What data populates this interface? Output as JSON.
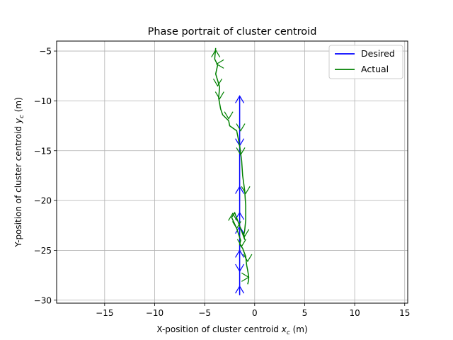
{
  "chart_data": {
    "type": "line",
    "title": "Phase portrait of cluster centroid",
    "xlabel": "X-position of cluster centroid x_c (m)",
    "xlabel_main": "X-position of cluster centroid ",
    "xlabel_var": "x",
    "xlabel_sub": "c",
    "xlabel_unit": " (m)",
    "ylabel": "Y-position of cluster centroid y_c (m)",
    "ylabel_main": "Y-position of cluster centroid ",
    "ylabel_var": "y",
    "ylabel_sub": "c",
    "ylabel_unit": " (m)",
    "xlim": [
      -19.8,
      15.3
    ],
    "ylim": [
      -30.3,
      -4.0
    ],
    "xticks": [
      -15,
      -10,
      -5,
      0,
      5,
      10,
      15
    ],
    "yticks": [
      -5,
      -10,
      -15,
      -20,
      -25,
      -30
    ],
    "xtick_labels": [
      "−15",
      "−10",
      "−5",
      "0",
      "5",
      "10",
      "15"
    ],
    "ytick_labels": [
      "−5",
      "−10",
      "−15",
      "−20",
      "−25",
      "−30"
    ],
    "grid": true,
    "legend_position": "top-right",
    "series": [
      {
        "name": "Desired",
        "color": "#0000ff",
        "x": [
          -1.5,
          -1.5,
          -1.5,
          -1.5,
          -1.5,
          -1.5,
          -1.5,
          -1.5,
          -1.5
        ],
        "y": [
          -9.5,
          -13.0,
          -16.5,
          -19.0,
          -21.5,
          -23.5,
          -26.0,
          -28.0,
          -29.5
        ],
        "arrows": [
          {
            "x": -1.5,
            "y": -9.5,
            "dir": "up"
          },
          {
            "x": -1.5,
            "y": -14.5,
            "dir": "down"
          },
          {
            "x": -1.5,
            "y": -18.6,
            "dir": "up"
          },
          {
            "x": -1.5,
            "y": -21.2,
            "dir": "up"
          },
          {
            "x": -1.5,
            "y": -22.6,
            "dir": "up"
          },
          {
            "x": -1.5,
            "y": -25.0,
            "dir": "up"
          },
          {
            "x": -1.5,
            "y": -27.1,
            "dir": "down"
          },
          {
            "x": -1.5,
            "y": -28.6,
            "dir": "up"
          }
        ]
      },
      {
        "name": "Actual",
        "color": "#008000",
        "x": [
          -3.9,
          -4.0,
          -3.7,
          -3.9,
          -3.5,
          -3.6,
          -3.4,
          -3.2,
          -2.6,
          -2.5,
          -1.8,
          -1.5,
          -1.3,
          -1.2,
          -1.0,
          -0.9,
          -0.9,
          -1.0,
          -1.1,
          -1.0,
          -2.0,
          -2.3,
          -1.8,
          -1.4,
          -1.5,
          -1.2,
          -0.9,
          -0.8,
          -0.7,
          -0.6,
          -0.6,
          -0.7
        ],
        "y": [
          -4.7,
          -5.8,
          -6.4,
          -7.3,
          -8.6,
          -9.7,
          -10.8,
          -11.4,
          -12.0,
          -12.5,
          -13.0,
          -14.5,
          -16.0,
          -17.5,
          -19.0,
          -20.5,
          -22.0,
          -23.0,
          -23.5,
          -23.9,
          -21.2,
          -21.7,
          -22.8,
          -24.0,
          -24.4,
          -24.8,
          -25.6,
          -26.5,
          -27.0,
          -27.6,
          -28.0,
          -28.4
        ],
        "arrows": [
          {
            "x": -3.9,
            "y": -4.9,
            "dir": "up"
          },
          {
            "x": -3.8,
            "y": -6.3,
            "dir": "left"
          },
          {
            "x": -3.7,
            "y": -8.5,
            "dir": "down"
          },
          {
            "x": -3.5,
            "y": -9.8,
            "dir": "down"
          },
          {
            "x": -2.6,
            "y": -11.8,
            "dir": "down"
          },
          {
            "x": -1.4,
            "y": -13.0,
            "dir": "down"
          },
          {
            "x": -1.4,
            "y": -15.4,
            "dir": "down"
          },
          {
            "x": -0.9,
            "y": -19.3,
            "dir": "down"
          },
          {
            "x": -2.2,
            "y": -21.3,
            "dir": "up"
          },
          {
            "x": -1.8,
            "y": -22.8,
            "dir": "down"
          },
          {
            "x": -1.0,
            "y": -23.6,
            "dir": "down"
          },
          {
            "x": -1.3,
            "y": -24.6,
            "dir": "down"
          },
          {
            "x": -0.7,
            "y": -26.1,
            "dir": "down"
          },
          {
            "x": -0.6,
            "y": -27.7,
            "dir": "right"
          }
        ]
      }
    ]
  }
}
